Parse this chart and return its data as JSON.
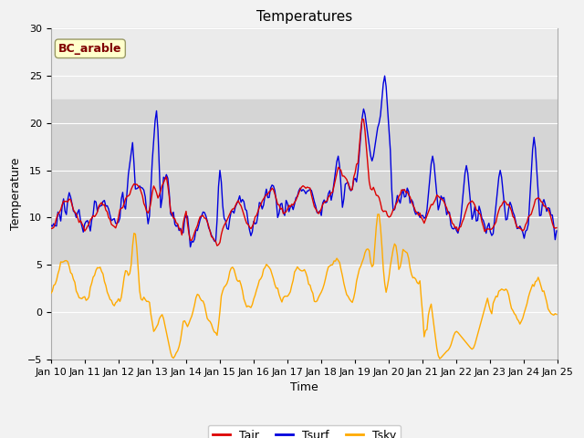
{
  "title": "Temperatures",
  "xlabel": "Time",
  "ylabel": "Temperature",
  "ylim": [
    -5,
    30
  ],
  "x_tick_labels": [
    "Jan 10",
    "Jan 11",
    "Jan 12",
    "Jan 13",
    "Jan 14",
    "Jan 15",
    "Jan 16",
    "Jan 17",
    "Jan 18",
    "Jan 19",
    "Jan 20",
    "Jan 21",
    "Jan 22",
    "Jan 23",
    "Jan 24",
    "Jan 25"
  ],
  "color_tair": "#dd0000",
  "color_tsurf": "#0000dd",
  "color_tsky": "#ffaa00",
  "bg_color": "#f2f2f2",
  "plot_bg": "#ebebeb",
  "band_lower": 5.0,
  "band_upper": 22.5,
  "band_color": "#d5d5d5",
  "legend_labels": [
    "Tair",
    "Tsurf",
    "Tsky"
  ],
  "annotation_text": "BC_arable",
  "annotation_color": "#800000",
  "annotation_bg": "#ffffcc",
  "annotation_edge": "#999966",
  "title_fontsize": 11,
  "label_fontsize": 9,
  "tick_fontsize": 8,
  "linewidth": 1.0
}
